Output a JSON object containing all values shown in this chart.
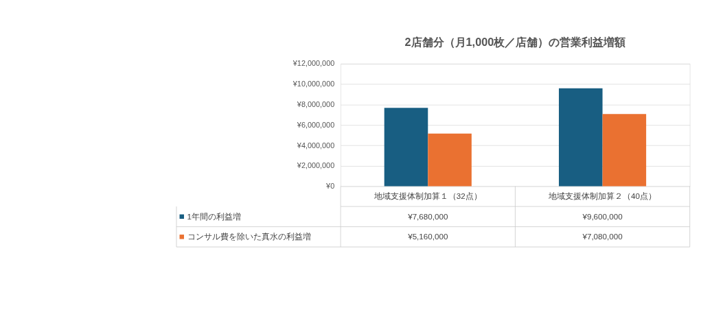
{
  "chart_data": {
    "type": "bar",
    "title": "2店舗分（月1,000枚／店舗）の営業利益増額",
    "categories": [
      "地域支援体制加算１（32点）",
      "地域支援体制加算２（40点）"
    ],
    "series": [
      {
        "name": "1年間の利益増",
        "color": "#185e82",
        "values": [
          7680000,
          9600000
        ],
        "value_labels": [
          "¥7,680,000",
          "¥9,600,000"
        ]
      },
      {
        "name": "コンサル費を除いた真水の利益増",
        "color": "#ea7131",
        "values": [
          5160000,
          7080000
        ],
        "value_labels": [
          "¥5,160,000",
          "¥7,080,000"
        ]
      }
    ],
    "ylim": [
      0,
      12000000
    ],
    "yticks": [
      {
        "value": 0,
        "label": "¥0"
      },
      {
        "value": 2000000,
        "label": "¥2,000,000"
      },
      {
        "value": 4000000,
        "label": "¥4,000,000"
      },
      {
        "value": 6000000,
        "label": "¥6,000,000"
      },
      {
        "value": 8000000,
        "label": "¥8,000,000"
      },
      {
        "value": 10000000,
        "label": "¥10,000,000"
      },
      {
        "value": 12000000,
        "label": "¥12,000,000"
      }
    ],
    "grid": "y",
    "legend": "bottom"
  }
}
